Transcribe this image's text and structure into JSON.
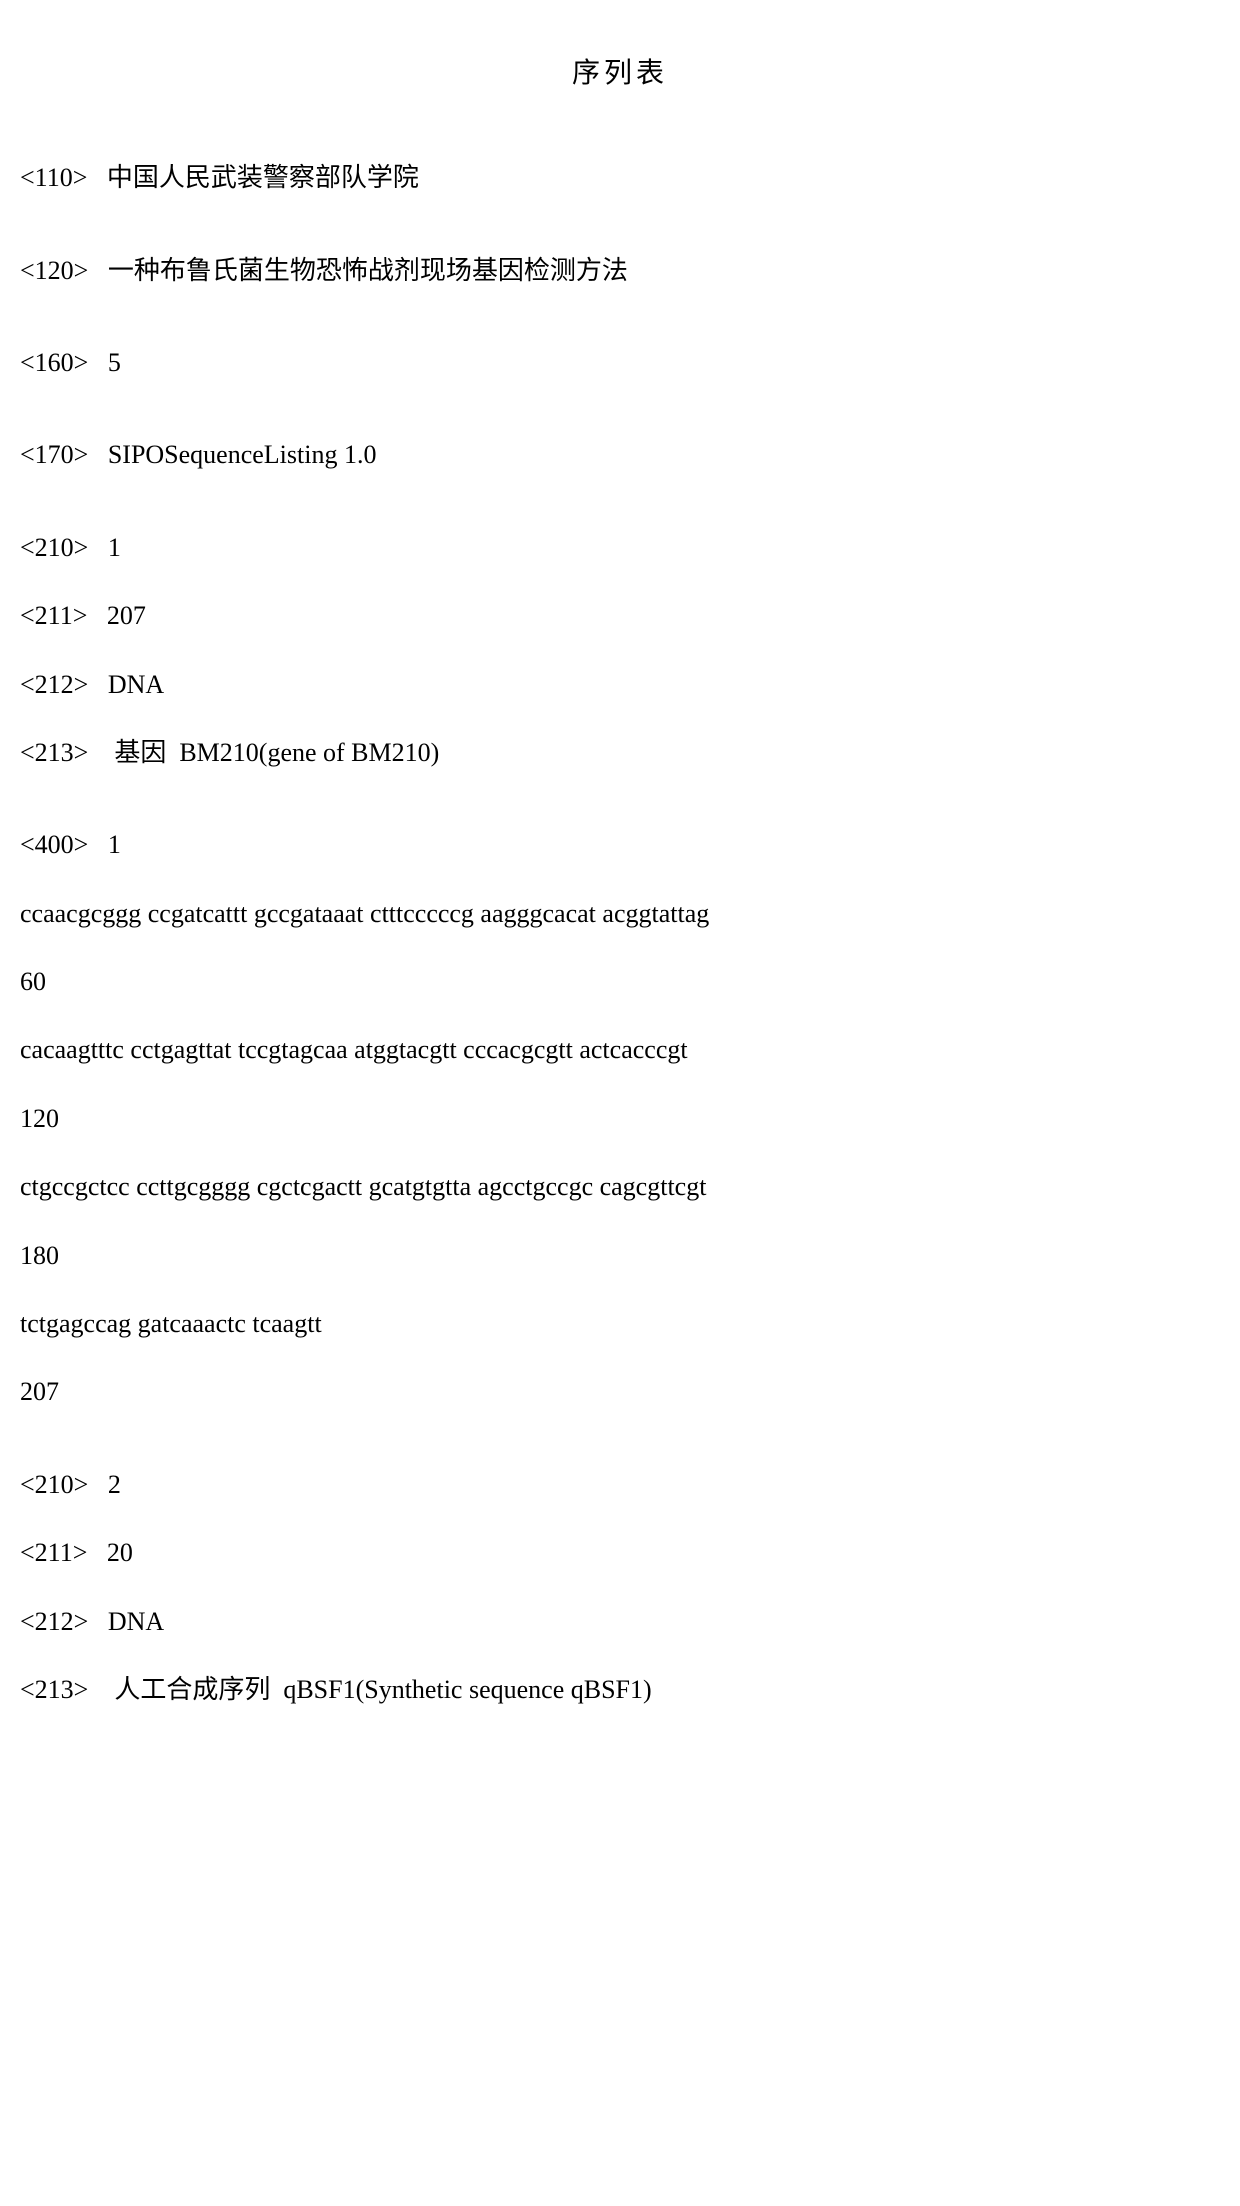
{
  "title": "序列表",
  "entries": {
    "e110": "<110>   中国人民武装警察部队学院",
    "e120": "<120>   一种布鲁氏菌生物恐怖战剂现场基因检测方法",
    "e160": "<160>   5",
    "e170": "<170>   SIPOSequenceListing 1.0",
    "s1_210": "<210>   1",
    "s1_211": "<211>   207",
    "s1_212": "<212>   DNA",
    "s1_213": "<213>    基因  BM210(gene of BM210)",
    "s1_400": "<400>   1",
    "seq1_l1": "ccaacgcggg ccgatcattt gccgataaat ctttcccccg aagggcacat acggtattag",
    "seq1_p1": "60",
    "seq1_l2": "cacaagtttc cctgagttat tccgtagcaa atggtacgtt cccacgcgtt actcacccgt",
    "seq1_p2": "120",
    "seq1_l3": "ctgccgctcc ccttgcgggg cgctcgactt gcatgtgtta agcctgccgc cagcgttcgt",
    "seq1_p3": "180",
    "seq1_l4": "tctgagccag gatcaaactc tcaagtt",
    "seq1_p4": "207",
    "s2_210": "<210>   2",
    "s2_211": "<211>   20",
    "s2_212": "<212>   DNA",
    "s2_213": "<213>    人工合成序列  qBSF1(Synthetic sequence qBSF1)"
  }
}
